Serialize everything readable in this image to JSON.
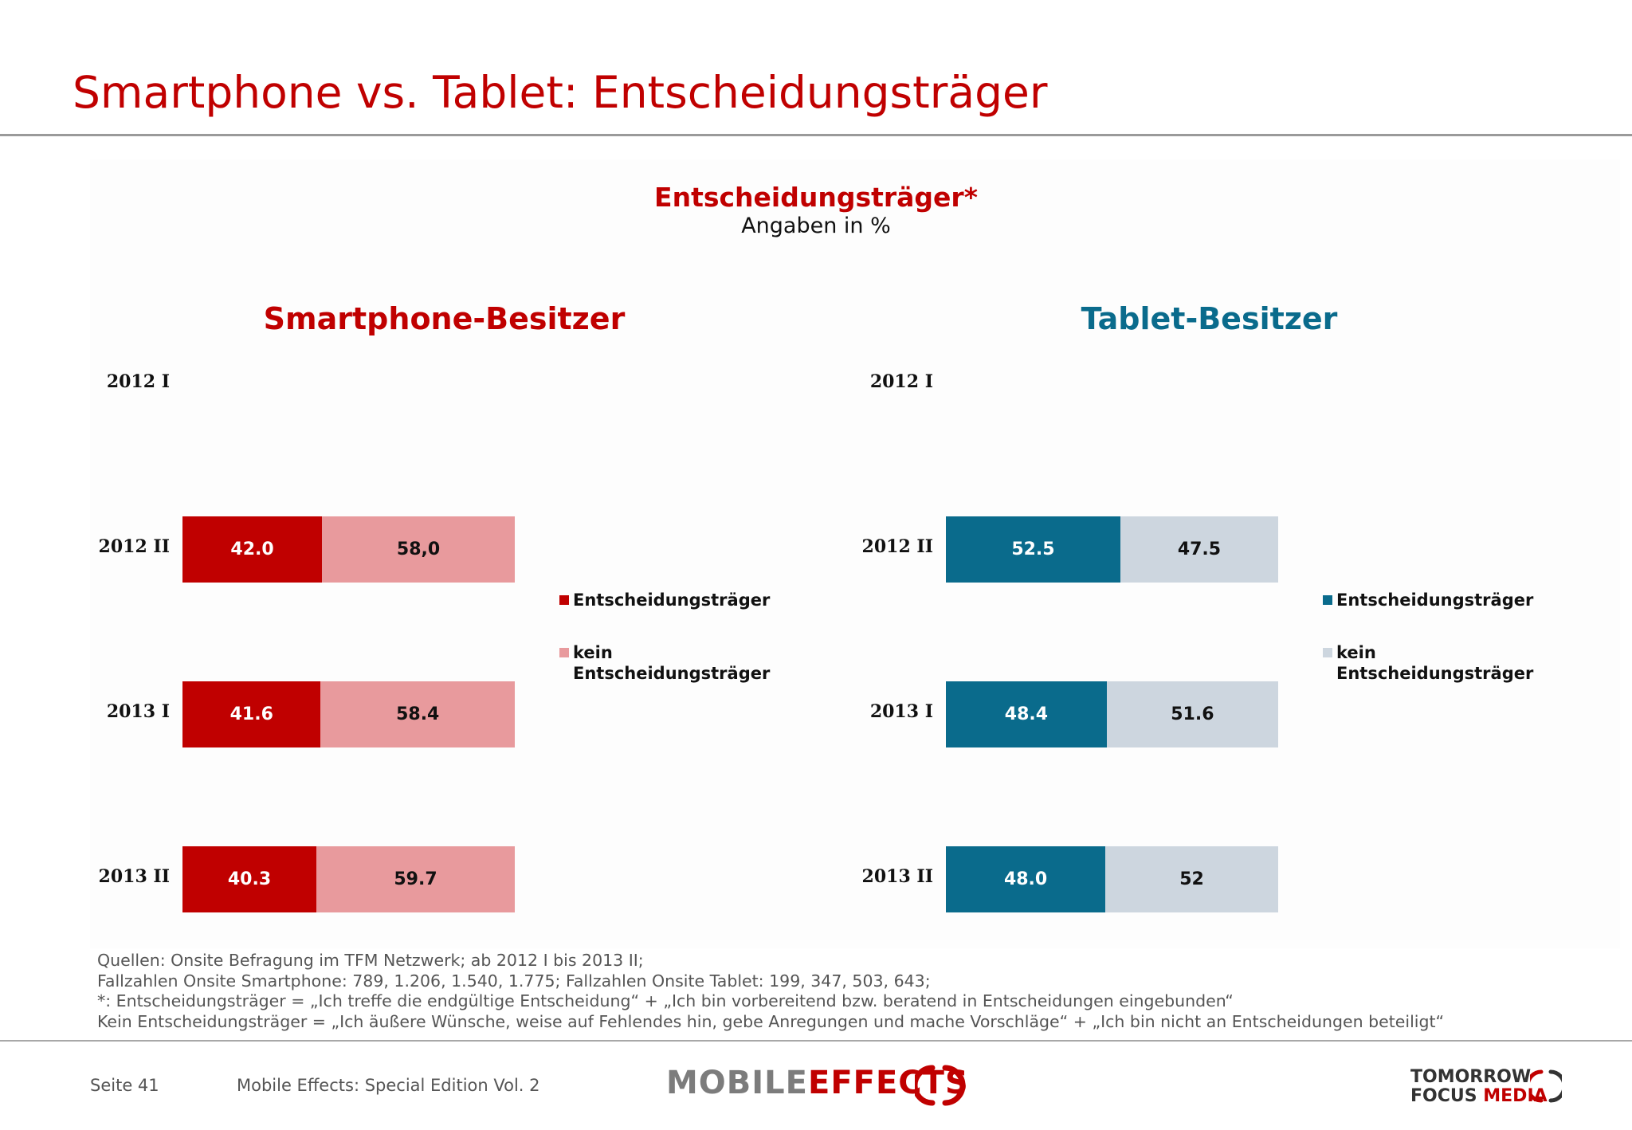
{
  "header": {
    "title": "Smartphone vs. Tablet: Entscheidungsträger"
  },
  "chart_header": {
    "title": "Entscheidungsträger*",
    "subtitle": "Angaben in %"
  },
  "colors": {
    "title_red": "#c00000",
    "tablet_teal": "#0a6b8c",
    "smartphone_decider": "#c00000",
    "smartphone_non_decider": "#e89a9d",
    "tablet_decider": "#0a6b8c",
    "tablet_non_decider": "#cdd6df"
  },
  "chart_data": [
    {
      "type": "bar",
      "orientation": "horizontal",
      "stacked": true,
      "title": "Smartphone-Besitzer",
      "categories": [
        "2012 I",
        "2012 II",
        "2013 I",
        "2013 II"
      ],
      "series": [
        {
          "name": "Entscheidungsträger",
          "values": [
            null,
            42.0,
            41.6,
            40.3
          ],
          "labels": [
            "",
            "42.0",
            "41.6",
            "40.3"
          ]
        },
        {
          "name": "kein Entscheidungsträger",
          "values": [
            null,
            58.0,
            58.4,
            59.7
          ],
          "labels": [
            "",
            "58,0",
            "58.4",
            "59.7"
          ]
        }
      ],
      "xlim": [
        0,
        100
      ],
      "grid": false,
      "legend": "right"
    },
    {
      "type": "bar",
      "orientation": "horizontal",
      "stacked": true,
      "title": "Tablet-Besitzer",
      "categories": [
        "2012 I",
        "2012 II",
        "2013 I",
        "2013 II"
      ],
      "series": [
        {
          "name": "Entscheidungsträger",
          "values": [
            null,
            52.5,
            48.4,
            48.0
          ],
          "labels": [
            "",
            "52.5",
            "48.4",
            "48.0"
          ]
        },
        {
          "name": "kein Entscheidungsträger",
          "values": [
            null,
            47.5,
            51.6,
            52
          ],
          "labels": [
            "",
            "47.5",
            "51.6",
            "52"
          ]
        }
      ],
      "xlim": [
        0,
        100
      ],
      "grid": false,
      "legend": "right"
    }
  ],
  "legend_labels": {
    "decider": "Entscheidungsträger",
    "non_decider_line1": "kein",
    "non_decider_line2": "Entscheidungsträger"
  },
  "sources": [
    "Quellen: Onsite Befragung im TFM Netzwerk; ab 2012 I bis 2013 II;",
    "Fallzahlen Onsite Smartphone: 789, 1.206, 1.540, 1.775; Fallzahlen Onsite Tablet: 199, 347, 503, 643;",
    "*: Entscheidungsträger = „Ich treffe die endgültige Entscheidung“ + „Ich bin vorbereitend bzw. beratend in Entscheidungen eingebunden“",
    "Kein Entscheidungsträger = „Ich äußere Wünsche, weise auf Fehlendes hin, gebe Anregungen und mache Vorschläge“ + „Ich bin nicht an Entscheidungen beteiligt“"
  ],
  "footer": {
    "page": "Seite 41",
    "publication": "Mobile Effects: Special Edition Vol. 2",
    "logo_mobile": "MOBILE",
    "logo_effects": "EFFECTS",
    "logo_tfm_line1": "TOMORROW",
    "logo_tfm_focus": "FOCUS",
    "logo_tfm_media": "MEDIA"
  }
}
